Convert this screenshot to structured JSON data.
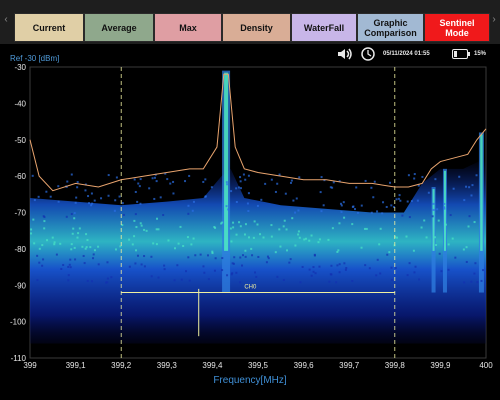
{
  "tabs": [
    {
      "label": "Current",
      "color": "#e0cfa6"
    },
    {
      "label": "Average",
      "color": "#8fa88c"
    },
    {
      "label": "Max",
      "color": "#df9ea3"
    },
    {
      "label": "Density",
      "color": "#d9ad96"
    },
    {
      "label": "WaterFall",
      "color": "#c8b6e8"
    },
    {
      "label": "Graphic\nComparison",
      "color": "#a2b9d3"
    },
    {
      "label": "Sentinel\nMode",
      "color": "#f0191b",
      "text_color": "#ffffff"
    }
  ],
  "status": {
    "datetime": "05/11/2024  01:55",
    "battery": "15%",
    "icons": [
      "volume-icon",
      "clock-icon",
      "battery-icon"
    ]
  },
  "ref_label": "Ref  -30 [dBm]",
  "channel_label": "CH0",
  "chart_data": {
    "type": "line",
    "xlabel": "Frequency[MHz]",
    "x_range": [
      399,
      400
    ],
    "y_range": [
      -110,
      -30
    ],
    "x_ticks": [
      "399",
      "399,1",
      "399,2",
      "399,3",
      "399,4",
      "399,5",
      "399,6",
      "399,7",
      "399,8",
      "399,9",
      "400"
    ],
    "y_ticks": [
      "-30",
      "-40",
      "-50",
      "-60",
      "-70",
      "-80",
      "-90",
      "-100",
      "-110"
    ],
    "markers_mhz": [
      399.2,
      399.8
    ],
    "channel_span_mhz": [
      399.2,
      399.8
    ],
    "channel_level_dbm": -92,
    "series": [
      {
        "color": "#e9a46e",
        "x": [
          399.0,
          399.02,
          399.05,
          399.1,
          399.15,
          399.2,
          399.25,
          399.3,
          399.35,
          399.38,
          399.41,
          399.425,
          399.435,
          399.45,
          399.47,
          399.5,
          399.55,
          399.6,
          399.65,
          399.7,
          399.75,
          399.8,
          399.83,
          399.86,
          399.88,
          399.9,
          399.93,
          399.96,
          399.98,
          400.0
        ],
        "y": [
          -50,
          -60,
          -64,
          -62,
          -63,
          -61,
          -60,
          -59,
          -58,
          -58,
          -52,
          -32,
          -32,
          -52,
          -58,
          -59,
          -60,
          -61,
          -61,
          -62,
          -62,
          -63,
          -63,
          -62,
          -58,
          -56,
          -55,
          -54,
          -50,
          -47
        ]
      }
    ],
    "signal_peaks_mhz": [
      399.43,
      399.885,
      399.91,
      399.99
    ]
  },
  "colors": {
    "density_low": "#0a1c8a",
    "density_mid": "#1f5fe0",
    "density_high": "#38e0c0",
    "grid": "#2a2a2a",
    "axis_tick_text": "#e6e6e6",
    "marker": "#f0f0a0"
  }
}
